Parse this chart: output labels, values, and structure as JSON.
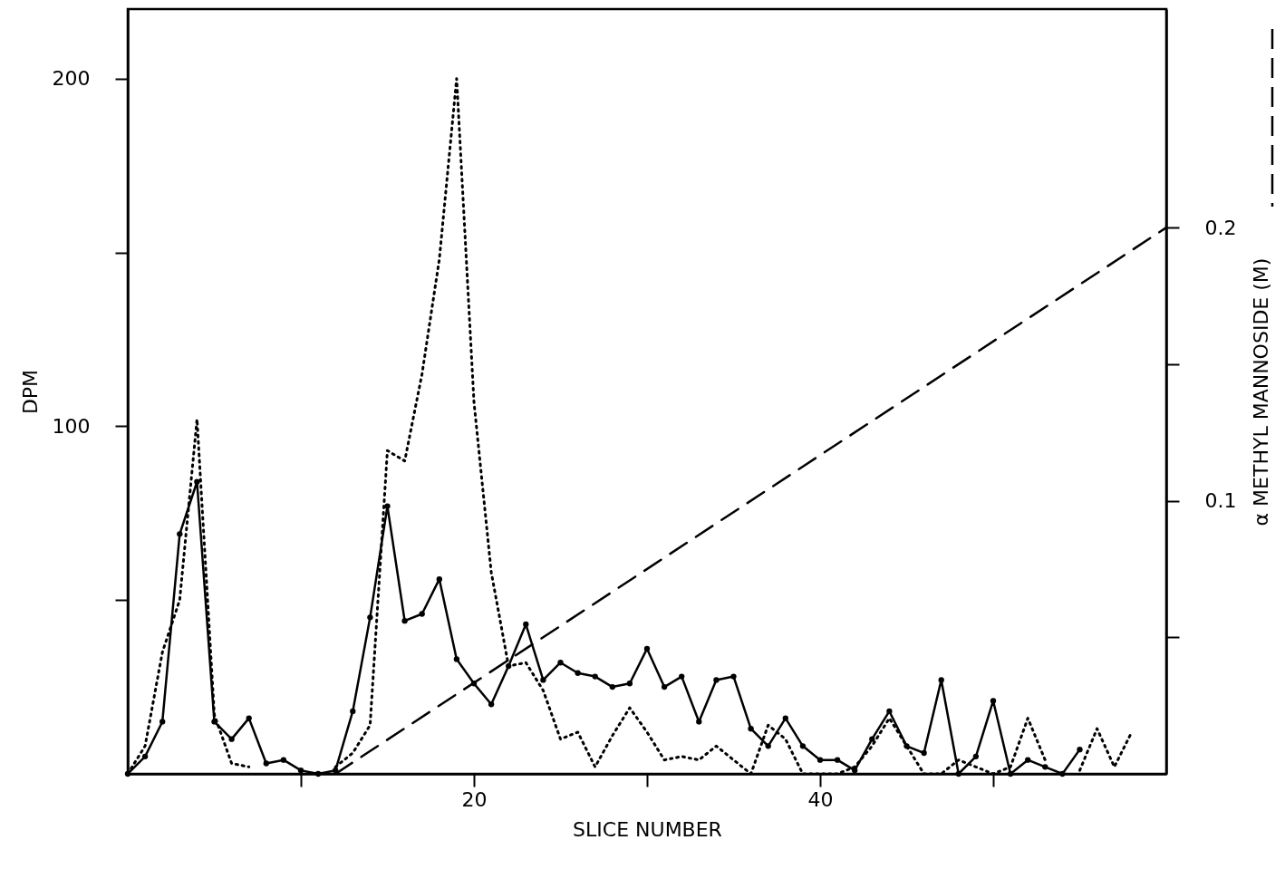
{
  "chart_data": {
    "type": "line",
    "xlabel": "SLICE NUMBER",
    "ylabel": "DPM",
    "y2label": "α METHYL MANNOSIDE (M)",
    "xlim": [
      0,
      60
    ],
    "xticks": [
      {
        "value": 10,
        "label": null
      },
      20,
      {
        "value": 30,
        "label": null
      },
      40,
      {
        "value": 50,
        "label": null
      }
    ],
    "ylim": [
      0,
      220
    ],
    "yticks": [
      {
        "value": 50,
        "label": null
      },
      100,
      {
        "value": 150,
        "label": null
      },
      200
    ],
    "y2lim": [
      0,
      0.28
    ],
    "y2ticks": [
      {
        "value": 0.05,
        "label": null
      },
      0.1,
      {
        "value": 0.15,
        "label": null
      },
      0.2
    ],
    "grid": false,
    "series": [
      {
        "color": "#000000",
        "line_style": "solid",
        "marker": "circle",
        "x": [
          0,
          1,
          2,
          3,
          4,
          5,
          6,
          7,
          8,
          9,
          10,
          11,
          12,
          13,
          14,
          15,
          16,
          17,
          18,
          19,
          20,
          21,
          22,
          23,
          24,
          25,
          26,
          27,
          28,
          29,
          30,
          31,
          32,
          33,
          34,
          35,
          36,
          37,
          38,
          39,
          40,
          41,
          42,
          43,
          44,
          45,
          46,
          47,
          48,
          49,
          50,
          51,
          52,
          53,
          54,
          55
        ],
        "values": [
          0,
          5,
          15,
          69,
          84,
          15,
          10,
          16,
          3,
          4,
          1,
          0,
          1,
          18,
          45,
          77,
          44,
          46,
          56,
          33,
          26,
          20,
          31,
          43,
          27,
          32,
          29,
          28,
          25,
          26,
          36,
          25,
          28,
          15,
          27,
          28,
          13,
          8,
          16,
          8,
          4,
          4,
          1,
          10,
          18,
          8,
          6,
          27,
          0,
          5,
          21,
          0,
          4,
          2,
          0,
          7
        ]
      },
      {
        "color": "#000000",
        "line_style": "dotted",
        "marker": "none",
        "x": [
          0,
          1,
          2,
          3,
          4,
          5,
          6,
          7,
          8,
          9,
          10,
          11,
          12,
          13,
          14,
          15,
          16,
          17,
          18,
          19,
          20,
          21,
          22,
          23,
          24,
          25,
          26,
          27,
          28,
          29,
          30,
          31,
          32,
          33,
          34,
          35,
          36,
          37,
          38,
          39,
          40,
          41,
          42,
          43,
          44,
          45,
          46,
          47,
          48,
          49,
          50,
          51,
          52,
          53,
          54,
          55,
          56,
          57,
          58
        ],
        "values": [
          0,
          8,
          35,
          50,
          102,
          17,
          3,
          2,
          null,
          null,
          null,
          null,
          2,
          6,
          14,
          93,
          90,
          115,
          148,
          200,
          107,
          58,
          31,
          32,
          24,
          10,
          12,
          2,
          11,
          19,
          12,
          4,
          5,
          4,
          8,
          4,
          0,
          14,
          10,
          0,
          0,
          0,
          2,
          8,
          16,
          8,
          0,
          0,
          4,
          2,
          0,
          2,
          16,
          4,
          null,
          1,
          13,
          2,
          12
        ]
      },
      {
        "color": "#000000",
        "line_style": "dashed",
        "marker": "none",
        "axis": "y2",
        "x": [
          12,
          60
        ],
        "values": [
          0,
          0.2
        ]
      }
    ]
  }
}
